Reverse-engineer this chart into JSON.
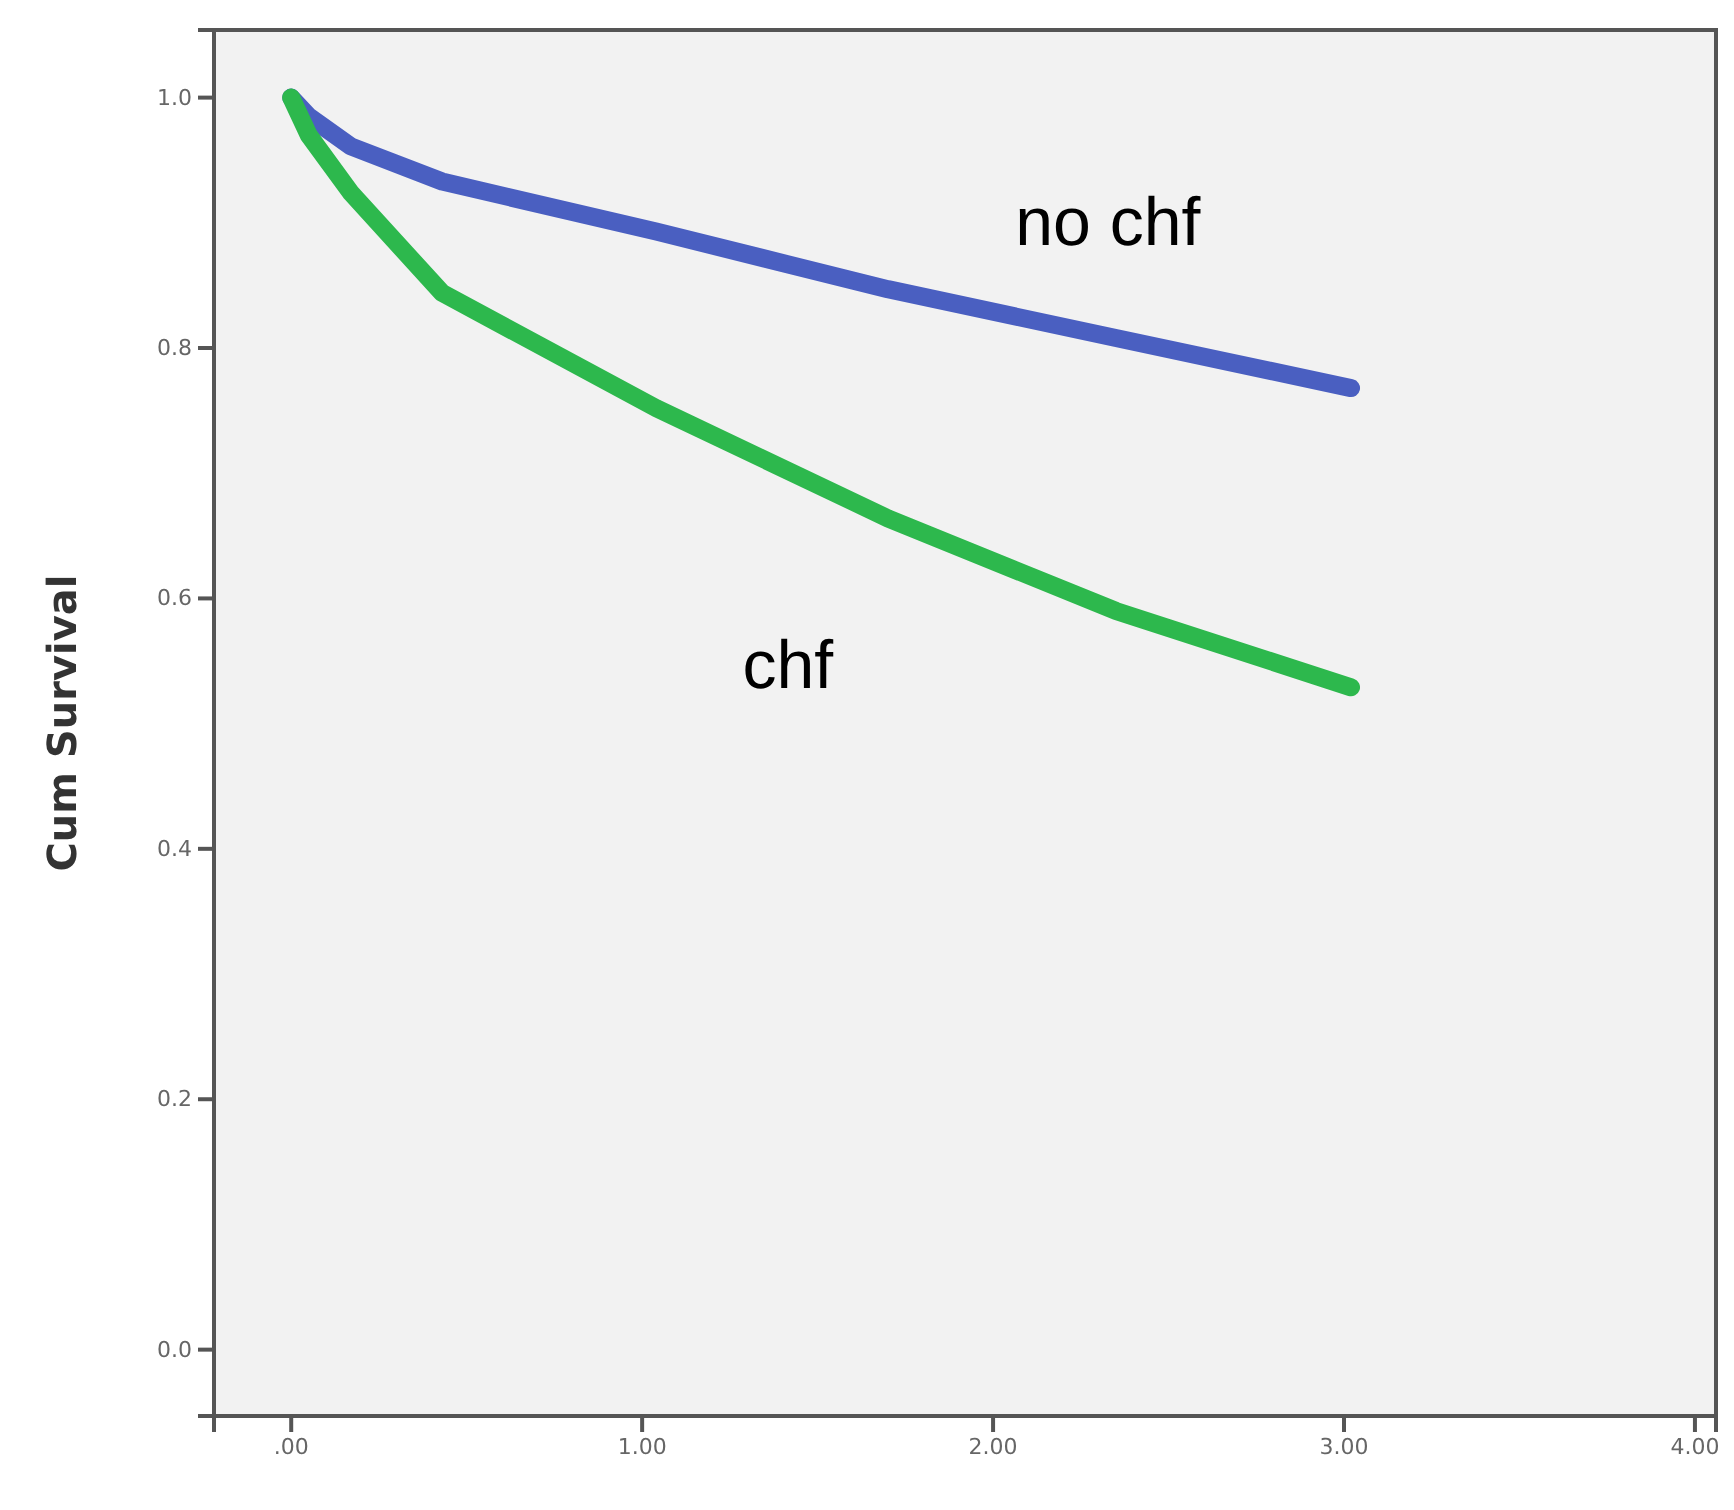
{
  "chart_data": {
    "type": "line",
    "ylabel": "Cum Survival",
    "xlim": [
      -0.22,
      4.06
    ],
    "ylim": [
      -0.053,
      1.054
    ],
    "xticks": [
      {
        "value": 0,
        "label": ".00"
      },
      {
        "value": 1,
        "label": "1.00"
      },
      {
        "value": 2,
        "label": "2.00"
      },
      {
        "value": 3,
        "label": "3.00"
      },
      {
        "value": 4,
        "label": "4.00"
      }
    ],
    "yticks": [
      {
        "value": 0,
        "label": "0.0"
      },
      {
        "value": 0.2,
        "label": "0.2"
      },
      {
        "value": 0.4,
        "label": "0.4"
      },
      {
        "value": 0.6,
        "label": "0.6"
      },
      {
        "value": 0.8,
        "label": "0.8"
      },
      {
        "value": 1,
        "label": "1.0"
      }
    ],
    "grid": false,
    "series": [
      {
        "name": "no chf",
        "color": "#4a5fc1",
        "x": [
          0,
          0.05,
          0.17,
          0.43,
          1.04,
          1.7,
          2.35,
          3.02
        ],
        "values": [
          1.0,
          0.985,
          0.961,
          0.933,
          0.893,
          0.847,
          0.808,
          0.768
        ]
      },
      {
        "name": "chf",
        "color": "#2db84d",
        "x": [
          0,
          0.05,
          0.17,
          0.43,
          1.04,
          1.7,
          2.35,
          3.02
        ],
        "values": [
          1.0,
          0.97,
          0.924,
          0.844,
          0.752,
          0.664,
          0.59,
          0.529
        ]
      }
    ]
  }
}
